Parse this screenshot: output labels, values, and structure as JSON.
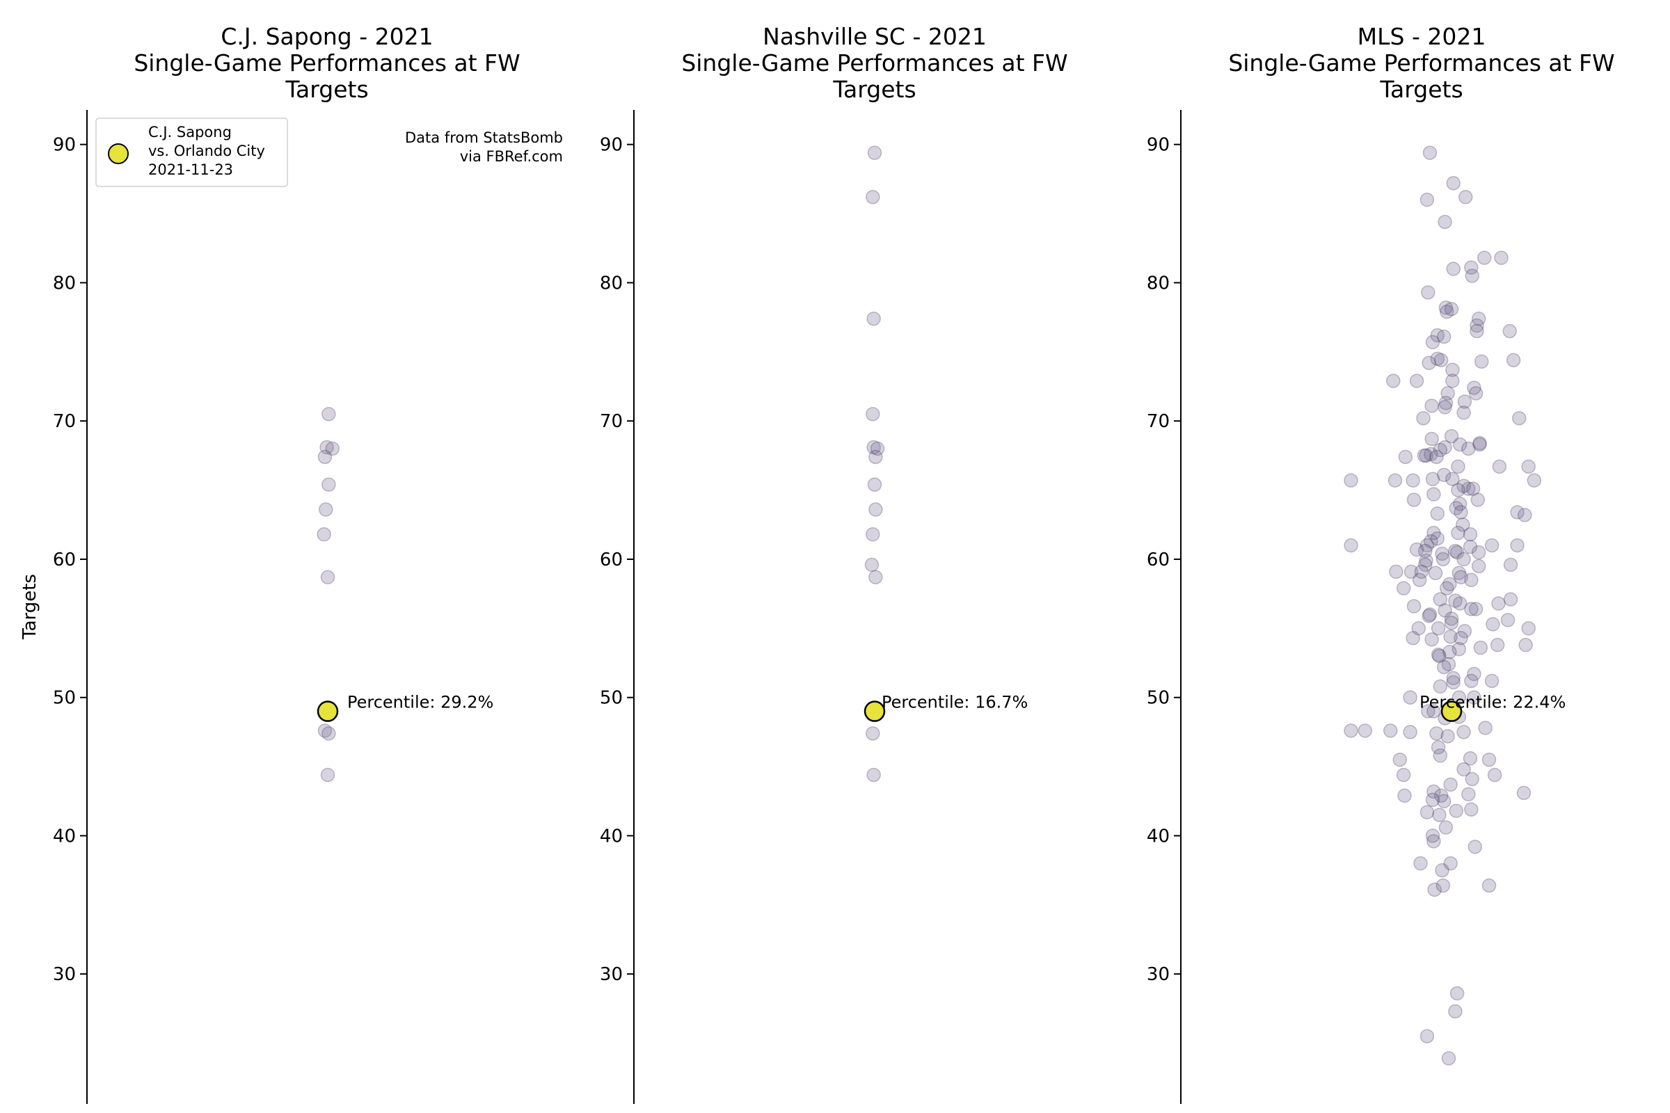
{
  "chart_data": [
    {
      "type": "scatter",
      "title": [
        "C.J. Sapong - 2021",
        "Single-Game Performances at FW",
        "Targets"
      ],
      "ylabel": "Targets",
      "ylim": [
        20.6,
        92.5
      ],
      "yticks": [
        30,
        40,
        50,
        60,
        70,
        80,
        90
      ],
      "grid": false,
      "legend": {
        "position": "top-left",
        "label": [
          "C.J. Sapong",
          "vs. Orlando City",
          "2021-11-23"
        ]
      },
      "source_note": [
        "Data from StatsBomb",
        "via FBRef.com"
      ],
      "percentile_label": "Percentile: 29.2%",
      "highlight": {
        "x": 0.0,
        "y": 49.0
      },
      "points": [
        {
          "x": 0.01,
          "y": 70.5
        },
        {
          "x": -0.01,
          "y": 68.1
        },
        {
          "x": 0.05,
          "y": 68.0
        },
        {
          "x": -0.03,
          "y": 67.4
        },
        {
          "x": 0.01,
          "y": 65.4
        },
        {
          "x": -0.02,
          "y": 63.6
        },
        {
          "x": -0.04,
          "y": 61.8
        },
        {
          "x": 0.0,
          "y": 58.7
        },
        {
          "x": -0.03,
          "y": 47.6
        },
        {
          "x": 0.01,
          "y": 47.4
        },
        {
          "x": 0.0,
          "y": 44.4
        }
      ]
    },
    {
      "type": "scatter",
      "title": [
        "Nashville SC - 2021",
        "Single-Game Performances at FW",
        "Targets"
      ],
      "ylabel": "",
      "ylim": [
        20.6,
        92.5
      ],
      "yticks": [
        30,
        40,
        50,
        60,
        70,
        80,
        90
      ],
      "grid": false,
      "percentile_label": "Percentile: 16.7%",
      "highlight": {
        "x": 0.0,
        "y": 49.0
      },
      "points": [
        {
          "x": 0.0,
          "y": 89.4
        },
        {
          "x": -0.02,
          "y": 86.2
        },
        {
          "x": -0.01,
          "y": 77.4
        },
        {
          "x": -0.02,
          "y": 70.5
        },
        {
          "x": -0.01,
          "y": 68.1
        },
        {
          "x": 0.03,
          "y": 68.0
        },
        {
          "x": 0.01,
          "y": 67.4
        },
        {
          "x": 0.0,
          "y": 65.4
        },
        {
          "x": 0.01,
          "y": 63.6
        },
        {
          "x": -0.02,
          "y": 61.8
        },
        {
          "x": -0.03,
          "y": 59.6
        },
        {
          "x": 0.01,
          "y": 58.7
        },
        {
          "x": -0.02,
          "y": 47.4
        },
        {
          "x": -0.01,
          "y": 44.4
        }
      ]
    },
    {
      "type": "scatter",
      "title": [
        "MLS - 2021",
        "Single-Game Performances at FW",
        "Targets"
      ],
      "ylabel": "",
      "ylim": [
        20.6,
        92.5
      ],
      "yticks": [
        30,
        40,
        50,
        60,
        70,
        80,
        90
      ],
      "grid": false,
      "percentile_label": "Percentile: 22.4%",
      "highlight": {
        "x": 0.0,
        "y": 49.0
      },
      "points": [
        {
          "x": -0.23,
          "y": 89.4
        },
        {
          "x": 0.02,
          "y": 87.2
        },
        {
          "x": -0.26,
          "y": 86.0
        },
        {
          "x": 0.15,
          "y": 86.2
        },
        {
          "x": -0.07,
          "y": 84.4
        },
        {
          "x": 0.53,
          "y": 81.8
        },
        {
          "x": 0.35,
          "y": 81.8
        },
        {
          "x": 0.02,
          "y": 81.0
        },
        {
          "x": 0.21,
          "y": 81.1
        },
        {
          "x": 0.22,
          "y": 80.5
        },
        {
          "x": -0.25,
          "y": 79.3
        },
        {
          "x": -0.06,
          "y": 78.2
        },
        {
          "x": -0.05,
          "y": 77.9
        },
        {
          "x": 0.0,
          "y": 78.1
        },
        {
          "x": 0.29,
          "y": 77.4
        },
        {
          "x": 0.27,
          "y": 76.9
        },
        {
          "x": 0.27,
          "y": 76.5
        },
        {
          "x": 0.62,
          "y": 76.5
        },
        {
          "x": -0.15,
          "y": 76.2
        },
        {
          "x": -0.08,
          "y": 76.1
        },
        {
          "x": -0.2,
          "y": 75.7
        },
        {
          "x": 0.66,
          "y": 74.4
        },
        {
          "x": -0.15,
          "y": 74.5
        },
        {
          "x": -0.11,
          "y": 74.4
        },
        {
          "x": -0.24,
          "y": 74.2
        },
        {
          "x": 0.32,
          "y": 74.3
        },
        {
          "x": 0.01,
          "y": 73.7
        },
        {
          "x": 0.01,
          "y": 72.9
        },
        {
          "x": -0.37,
          "y": 72.9
        },
        {
          "x": -0.62,
          "y": 72.9
        },
        {
          "x": 0.24,
          "y": 72.4
        },
        {
          "x": 0.26,
          "y": 72.0
        },
        {
          "x": -0.04,
          "y": 72.0
        },
        {
          "x": -0.06,
          "y": 71.3
        },
        {
          "x": 0.14,
          "y": 71.4
        },
        {
          "x": -0.21,
          "y": 71.1
        },
        {
          "x": -0.07,
          "y": 71.0
        },
        {
          "x": 0.13,
          "y": 70.6
        },
        {
          "x": -0.3,
          "y": 70.2
        },
        {
          "x": 0.72,
          "y": 70.2
        },
        {
          "x": 0.0,
          "y": 68.9
        },
        {
          "x": -0.21,
          "y": 68.7
        },
        {
          "x": 0.3,
          "y": 68.4
        },
        {
          "x": 0.3,
          "y": 68.3
        },
        {
          "x": 0.09,
          "y": 68.3
        },
        {
          "x": -0.07,
          "y": 68.1
        },
        {
          "x": 0.18,
          "y": 68.0
        },
        {
          "x": -0.12,
          "y": 67.9
        },
        {
          "x": -0.22,
          "y": 67.6
        },
        {
          "x": -0.27,
          "y": 67.5
        },
        {
          "x": -0.29,
          "y": 67.5
        },
        {
          "x": -0.49,
          "y": 67.4
        },
        {
          "x": -0.16,
          "y": 67.4
        },
        {
          "x": 0.07,
          "y": 66.7
        },
        {
          "x": 0.51,
          "y": 66.7
        },
        {
          "x": 0.82,
          "y": 66.7
        },
        {
          "x": -1.07,
          "y": 65.7
        },
        {
          "x": -0.6,
          "y": 65.7
        },
        {
          "x": -0.41,
          "y": 65.7
        },
        {
          "x": -0.2,
          "y": 65.8
        },
        {
          "x": -0.08,
          "y": 66.1
        },
        {
          "x": 0.01,
          "y": 65.8
        },
        {
          "x": 0.88,
          "y": 65.7
        },
        {
          "x": 0.18,
          "y": 65.1
        },
        {
          "x": 0.13,
          "y": 65.3
        },
        {
          "x": 0.23,
          "y": 65.1
        },
        {
          "x": 0.07,
          "y": 65.0
        },
        {
          "x": -0.19,
          "y": 64.7
        },
        {
          "x": -0.4,
          "y": 64.3
        },
        {
          "x": 0.28,
          "y": 64.3
        },
        {
          "x": 0.09,
          "y": 64.0
        },
        {
          "x": 0.05,
          "y": 63.7
        },
        {
          "x": 0.1,
          "y": 63.4
        },
        {
          "x": 0.7,
          "y": 63.4
        },
        {
          "x": 0.78,
          "y": 63.2
        },
        {
          "x": -0.15,
          "y": 63.3
        },
        {
          "x": 0.12,
          "y": 62.5
        },
        {
          "x": -0.19,
          "y": 61.9
        },
        {
          "x": 0.07,
          "y": 61.9
        },
        {
          "x": 0.2,
          "y": 61.8
        },
        {
          "x": -0.15,
          "y": 61.5
        },
        {
          "x": -0.22,
          "y": 61.3
        },
        {
          "x": -0.26,
          "y": 61.0
        },
        {
          "x": -1.07,
          "y": 61.0
        },
        {
          "x": 0.43,
          "y": 61.0
        },
        {
          "x": 0.7,
          "y": 61.0
        },
        {
          "x": 0.2,
          "y": 60.9
        },
        {
          "x": -0.37,
          "y": 60.7
        },
        {
          "x": -0.28,
          "y": 60.6
        },
        {
          "x": 0.04,
          "y": 60.6
        },
        {
          "x": 0.06,
          "y": 60.5
        },
        {
          "x": -0.1,
          "y": 60.4
        },
        {
          "x": 0.29,
          "y": 60.5
        },
        {
          "x": -0.09,
          "y": 60.0
        },
        {
          "x": 0.13,
          "y": 60.0
        },
        {
          "x": -0.27,
          "y": 59.9
        },
        {
          "x": -0.28,
          "y": 59.6
        },
        {
          "x": 0.63,
          "y": 59.6
        },
        {
          "x": 0.29,
          "y": 59.5
        },
        {
          "x": -0.17,
          "y": 59.0
        },
        {
          "x": 0.08,
          "y": 59.0
        },
        {
          "x": -0.59,
          "y": 59.1
        },
        {
          "x": -0.43,
          "y": 59.1
        },
        {
          "x": -0.32,
          "y": 59.1
        },
        {
          "x": 0.1,
          "y": 58.7
        },
        {
          "x": -0.02,
          "y": 58.2
        },
        {
          "x": -0.34,
          "y": 58.5
        },
        {
          "x": 0.21,
          "y": 58.5
        },
        {
          "x": -0.05,
          "y": 57.9
        },
        {
          "x": -0.51,
          "y": 57.9
        },
        {
          "x": 0.63,
          "y": 57.1
        },
        {
          "x": -0.12,
          "y": 57.1
        },
        {
          "x": 0.09,
          "y": 56.8
        },
        {
          "x": 0.04,
          "y": 57.0
        },
        {
          "x": 0.5,
          "y": 56.8
        },
        {
          "x": -0.4,
          "y": 56.6
        },
        {
          "x": 0.26,
          "y": 56.4
        },
        {
          "x": 0.21,
          "y": 56.4
        },
        {
          "x": -0.07,
          "y": 56.3
        },
        {
          "x": -0.23,
          "y": 56.0
        },
        {
          "x": -0.24,
          "y": 55.9
        },
        {
          "x": 0.0,
          "y": 55.7
        },
        {
          "x": 0.6,
          "y": 55.6
        },
        {
          "x": 0.44,
          "y": 55.3
        },
        {
          "x": 0.0,
          "y": 55.4
        },
        {
          "x": -0.14,
          "y": 55.0
        },
        {
          "x": 0.82,
          "y": 55.0
        },
        {
          "x": -0.35,
          "y": 55.0
        },
        {
          "x": 0.14,
          "y": 54.8
        },
        {
          "x": -0.01,
          "y": 54.4
        },
        {
          "x": 0.1,
          "y": 54.3
        },
        {
          "x": -0.41,
          "y": 54.3
        },
        {
          "x": -0.21,
          "y": 54.2
        },
        {
          "x": 0.49,
          "y": 53.8
        },
        {
          "x": 0.79,
          "y": 53.8
        },
        {
          "x": 0.08,
          "y": 53.5
        },
        {
          "x": 0.31,
          "y": 53.6
        },
        {
          "x": -0.14,
          "y": 53.1
        },
        {
          "x": -0.13,
          "y": 53.0
        },
        {
          "x": -0.02,
          "y": 53.3
        },
        {
          "x": -0.03,
          "y": 52.4
        },
        {
          "x": -0.08,
          "y": 52.2
        },
        {
          "x": 0.24,
          "y": 51.7
        },
        {
          "x": 0.21,
          "y": 51.2
        },
        {
          "x": 0.43,
          "y": 51.2
        },
        {
          "x": 0.02,
          "y": 51.4
        },
        {
          "x": 0.02,
          "y": 51.1
        },
        {
          "x": -0.12,
          "y": 50.8
        },
        {
          "x": 0.24,
          "y": 50.0
        },
        {
          "x": -0.44,
          "y": 50.0
        },
        {
          "x": 0.08,
          "y": 50.0
        },
        {
          "x": -0.25,
          "y": 49.0
        },
        {
          "x": -0.19,
          "y": 49.0
        },
        {
          "x": 0.08,
          "y": 48.6
        },
        {
          "x": -0.07,
          "y": 48.5
        },
        {
          "x": -1.07,
          "y": 47.6
        },
        {
          "x": -0.92,
          "y": 47.6
        },
        {
          "x": -0.65,
          "y": 47.6
        },
        {
          "x": -0.44,
          "y": 47.5
        },
        {
          "x": 0.13,
          "y": 47.5
        },
        {
          "x": 0.36,
          "y": 47.8
        },
        {
          "x": -0.16,
          "y": 47.4
        },
        {
          "x": -0.04,
          "y": 47.2
        },
        {
          "x": -0.14,
          "y": 46.4
        },
        {
          "x": -0.12,
          "y": 45.8
        },
        {
          "x": 0.2,
          "y": 45.6
        },
        {
          "x": -0.55,
          "y": 45.5
        },
        {
          "x": 0.4,
          "y": 45.5
        },
        {
          "x": 0.13,
          "y": 44.8
        },
        {
          "x": 0.46,
          "y": 44.4
        },
        {
          "x": -0.51,
          "y": 44.4
        },
        {
          "x": 0.22,
          "y": 44.1
        },
        {
          "x": -0.01,
          "y": 43.7
        },
        {
          "x": 0.18,
          "y": 43.0
        },
        {
          "x": -0.5,
          "y": 42.9
        },
        {
          "x": 0.77,
          "y": 43.1
        },
        {
          "x": -0.19,
          "y": 43.2
        },
        {
          "x": -0.11,
          "y": 42.9
        },
        {
          "x": -0.08,
          "y": 42.5
        },
        {
          "x": -0.2,
          "y": 42.6
        },
        {
          "x": 0.21,
          "y": 41.9
        },
        {
          "x": 0.05,
          "y": 41.8
        },
        {
          "x": -0.26,
          "y": 41.7
        },
        {
          "x": -0.13,
          "y": 41.5
        },
        {
          "x": -0.06,
          "y": 40.6
        },
        {
          "x": -0.2,
          "y": 40.0
        },
        {
          "x": -0.19,
          "y": 39.6
        },
        {
          "x": 0.25,
          "y": 39.2
        },
        {
          "x": 0.4,
          "y": 36.4
        },
        {
          "x": -0.33,
          "y": 38.0
        },
        {
          "x": -0.01,
          "y": 38.0
        },
        {
          "x": -0.1,
          "y": 37.5
        },
        {
          "x": -0.18,
          "y": 36.1
        },
        {
          "x": -0.09,
          "y": 36.4
        },
        {
          "x": 0.06,
          "y": 28.6
        },
        {
          "x": 0.04,
          "y": 27.3
        },
        {
          "x": -0.26,
          "y": 25.5
        },
        {
          "x": -0.03,
          "y": 23.9
        }
      ]
    }
  ]
}
